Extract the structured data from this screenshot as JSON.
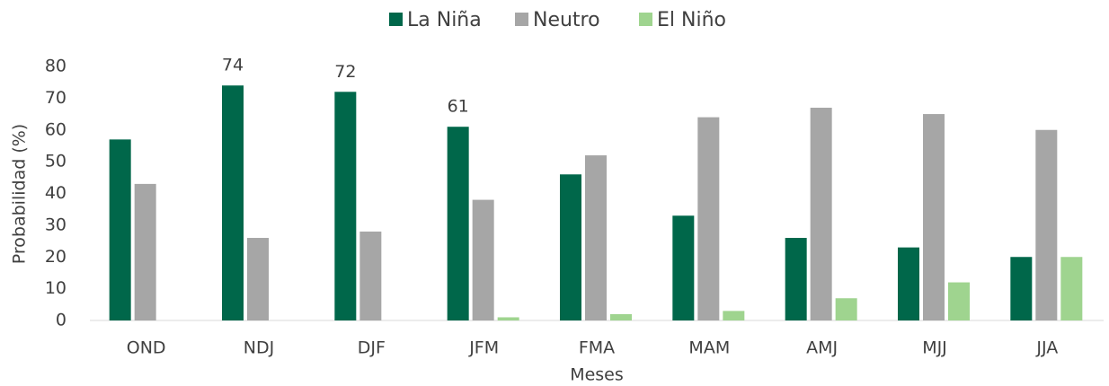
{
  "chart_data": {
    "type": "bar",
    "xlabel": "Meses",
    "ylabel": "Probabilidad (%)",
    "categories": [
      "OND",
      "NDJ",
      "DJF",
      "JFM",
      "FMA",
      "MAM",
      "AMJ",
      "MJJ",
      "JJA"
    ],
    "series": [
      {
        "name": "La Niña",
        "color": "#00674a",
        "values": [
          57,
          74,
          72,
          61,
          46,
          33,
          26,
          23,
          20
        ],
        "value_labels": [
          null,
          "74",
          "72",
          "61",
          null,
          null,
          null,
          null,
          null
        ]
      },
      {
        "name": "Neutro",
        "color": "#a6a6a6",
        "values": [
          43,
          26,
          28,
          38,
          52,
          64,
          67,
          65,
          60
        ]
      },
      {
        "name": "El Niño",
        "color": "#9fd48f",
        "values": [
          0,
          0,
          0,
          1,
          2,
          3,
          7,
          12,
          20
        ]
      }
    ],
    "ylim": [
      0,
      80
    ],
    "yticks": [
      0,
      10,
      20,
      30,
      40,
      50,
      60,
      70,
      80
    ],
    "grid": false,
    "legend": "top"
  }
}
